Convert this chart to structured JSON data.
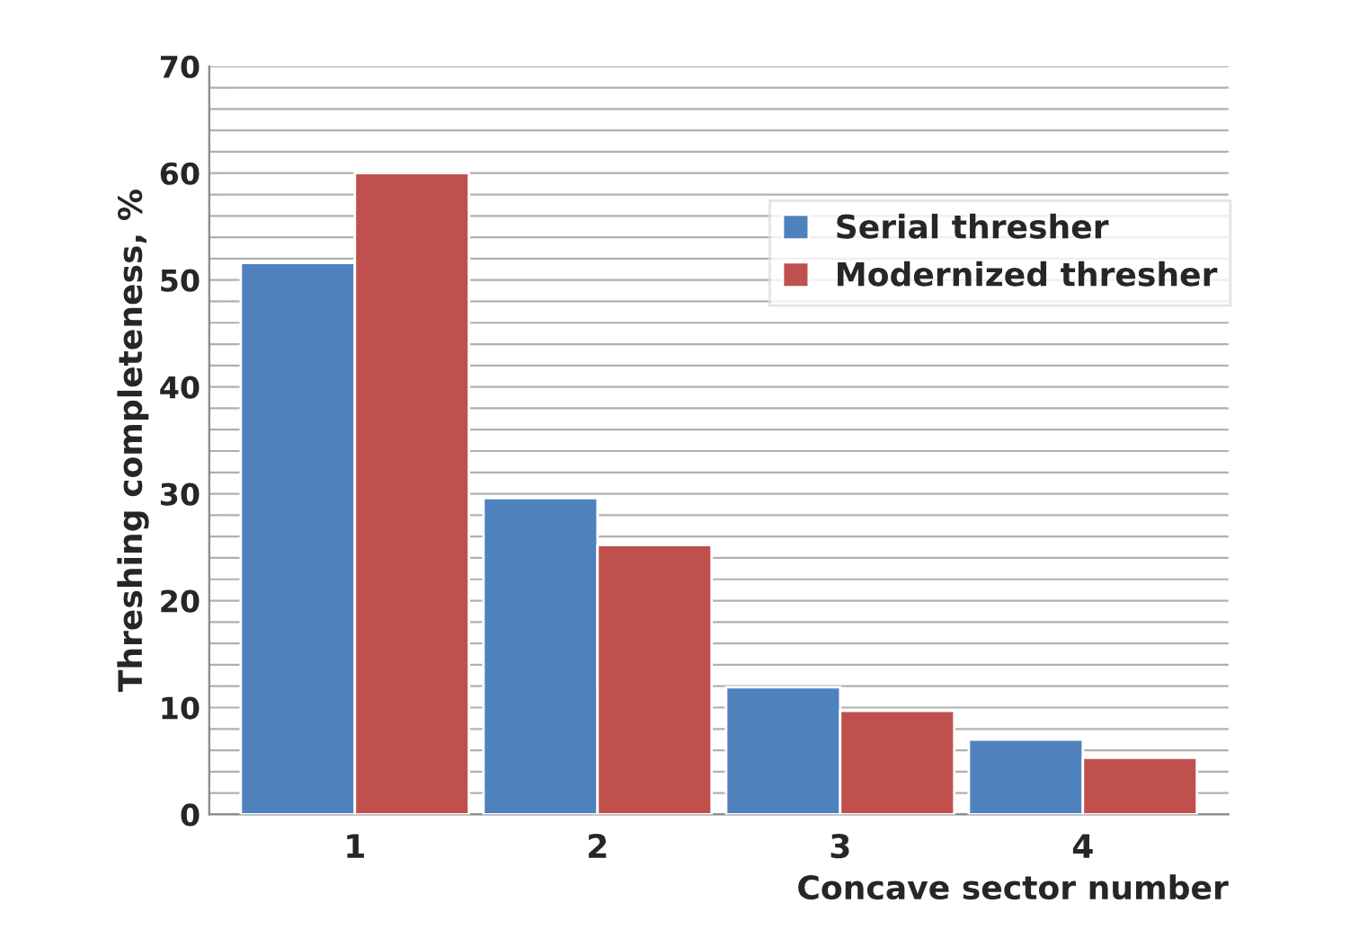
{
  "chart_data": {
    "type": "bar",
    "xlabel": "Concave sector number",
    "ylabel": "Threshing completeness, %",
    "categories": [
      "1",
      "2",
      "3",
      "4"
    ],
    "series": [
      {
        "name": "Serial thresher",
        "color": "#4f81bd",
        "values": [
          51.6,
          29.6,
          11.9,
          7.0
        ]
      },
      {
        "name": "Modernized thresher",
        "color": "#c0504d",
        "values": [
          60.0,
          25.2,
          9.7,
          5.3
        ]
      }
    ],
    "ylim": [
      0,
      70
    ],
    "yticks": [
      0,
      {
        "value": 2,
        "label": null
      },
      {
        "value": 4,
        "label": null
      },
      {
        "value": 6,
        "label": null
      },
      {
        "value": 8,
        "label": null
      },
      10,
      {
        "value": 12,
        "label": null
      },
      {
        "value": 14,
        "label": null
      },
      {
        "value": 16,
        "label": null
      },
      {
        "value": 18,
        "label": null
      },
      20,
      {
        "value": 22,
        "label": null
      },
      {
        "value": 24,
        "label": null
      },
      {
        "value": 26,
        "label": null
      },
      {
        "value": 28,
        "label": null
      },
      30,
      {
        "value": 32,
        "label": null
      },
      {
        "value": 34,
        "label": null
      },
      {
        "value": 36,
        "label": null
      },
      {
        "value": 38,
        "label": null
      },
      40,
      {
        "value": 42,
        "label": null
      },
      {
        "value": 44,
        "label": null
      },
      {
        "value": 46,
        "label": null
      },
      {
        "value": 48,
        "label": null
      },
      50,
      {
        "value": 52,
        "label": null
      },
      {
        "value": 54,
        "label": null
      },
      {
        "value": 56,
        "label": null
      },
      {
        "value": 58,
        "label": null
      },
      60,
      {
        "value": 62,
        "label": null
      },
      {
        "value": 64,
        "label": null
      },
      {
        "value": 66,
        "label": null
      },
      {
        "value": 68,
        "label": null
      },
      70
    ],
    "grid": "y",
    "legend": "top right"
  }
}
